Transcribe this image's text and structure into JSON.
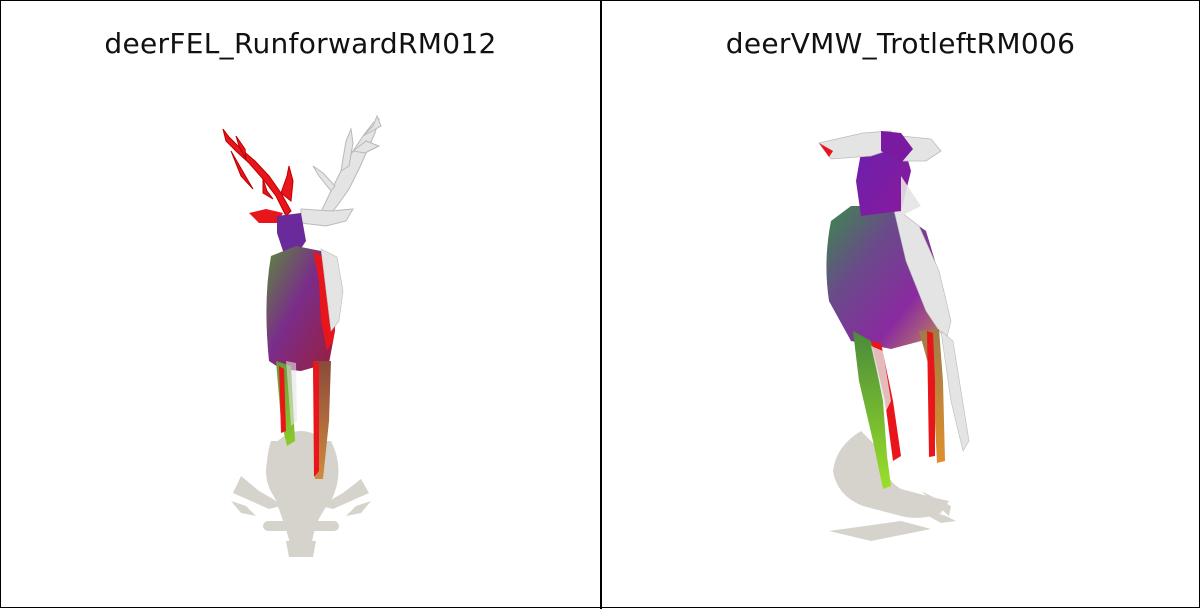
{
  "panels": [
    {
      "title": "deerFEL_RunforwardRM012"
    },
    {
      "title": "deerVMW_TrotleftRM006"
    }
  ],
  "colors": {
    "background": "#ffffff",
    "border": "#000000",
    "shadow": "#d6d3cc",
    "mismatch": "#e8151b",
    "mesh_white": "#e4e4e4"
  }
}
